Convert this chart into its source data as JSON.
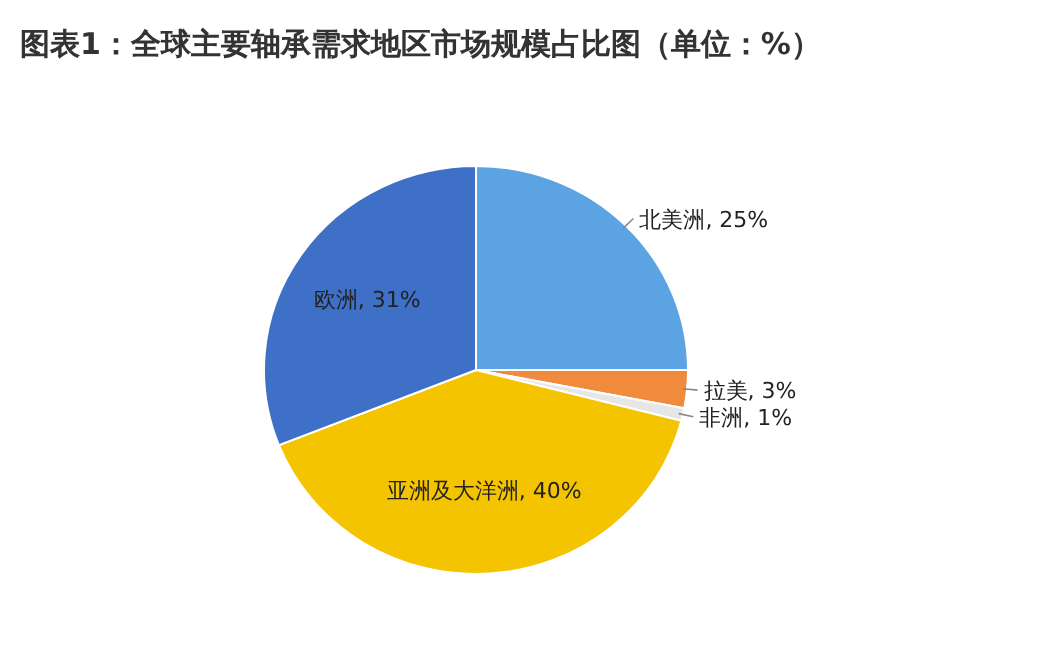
{
  "chart_data": {
    "type": "pie",
    "title": "图表1：全球主要轴承需求地区市场规模占比图（单位：%）",
    "categories": [
      "北美洲",
      "拉美",
      "非洲",
      "亚洲及大洋洲",
      "欧洲"
    ],
    "values": [
      25,
      3,
      1,
      40,
      31
    ],
    "value_labels": [
      "25%",
      "3%",
      "1%",
      "40%",
      "31%"
    ],
    "colors": [
      "#5ba3e2",
      "#f08a3c",
      "#e6e6e6",
      "#f5c400",
      "#3f70c8"
    ],
    "legend": false
  }
}
